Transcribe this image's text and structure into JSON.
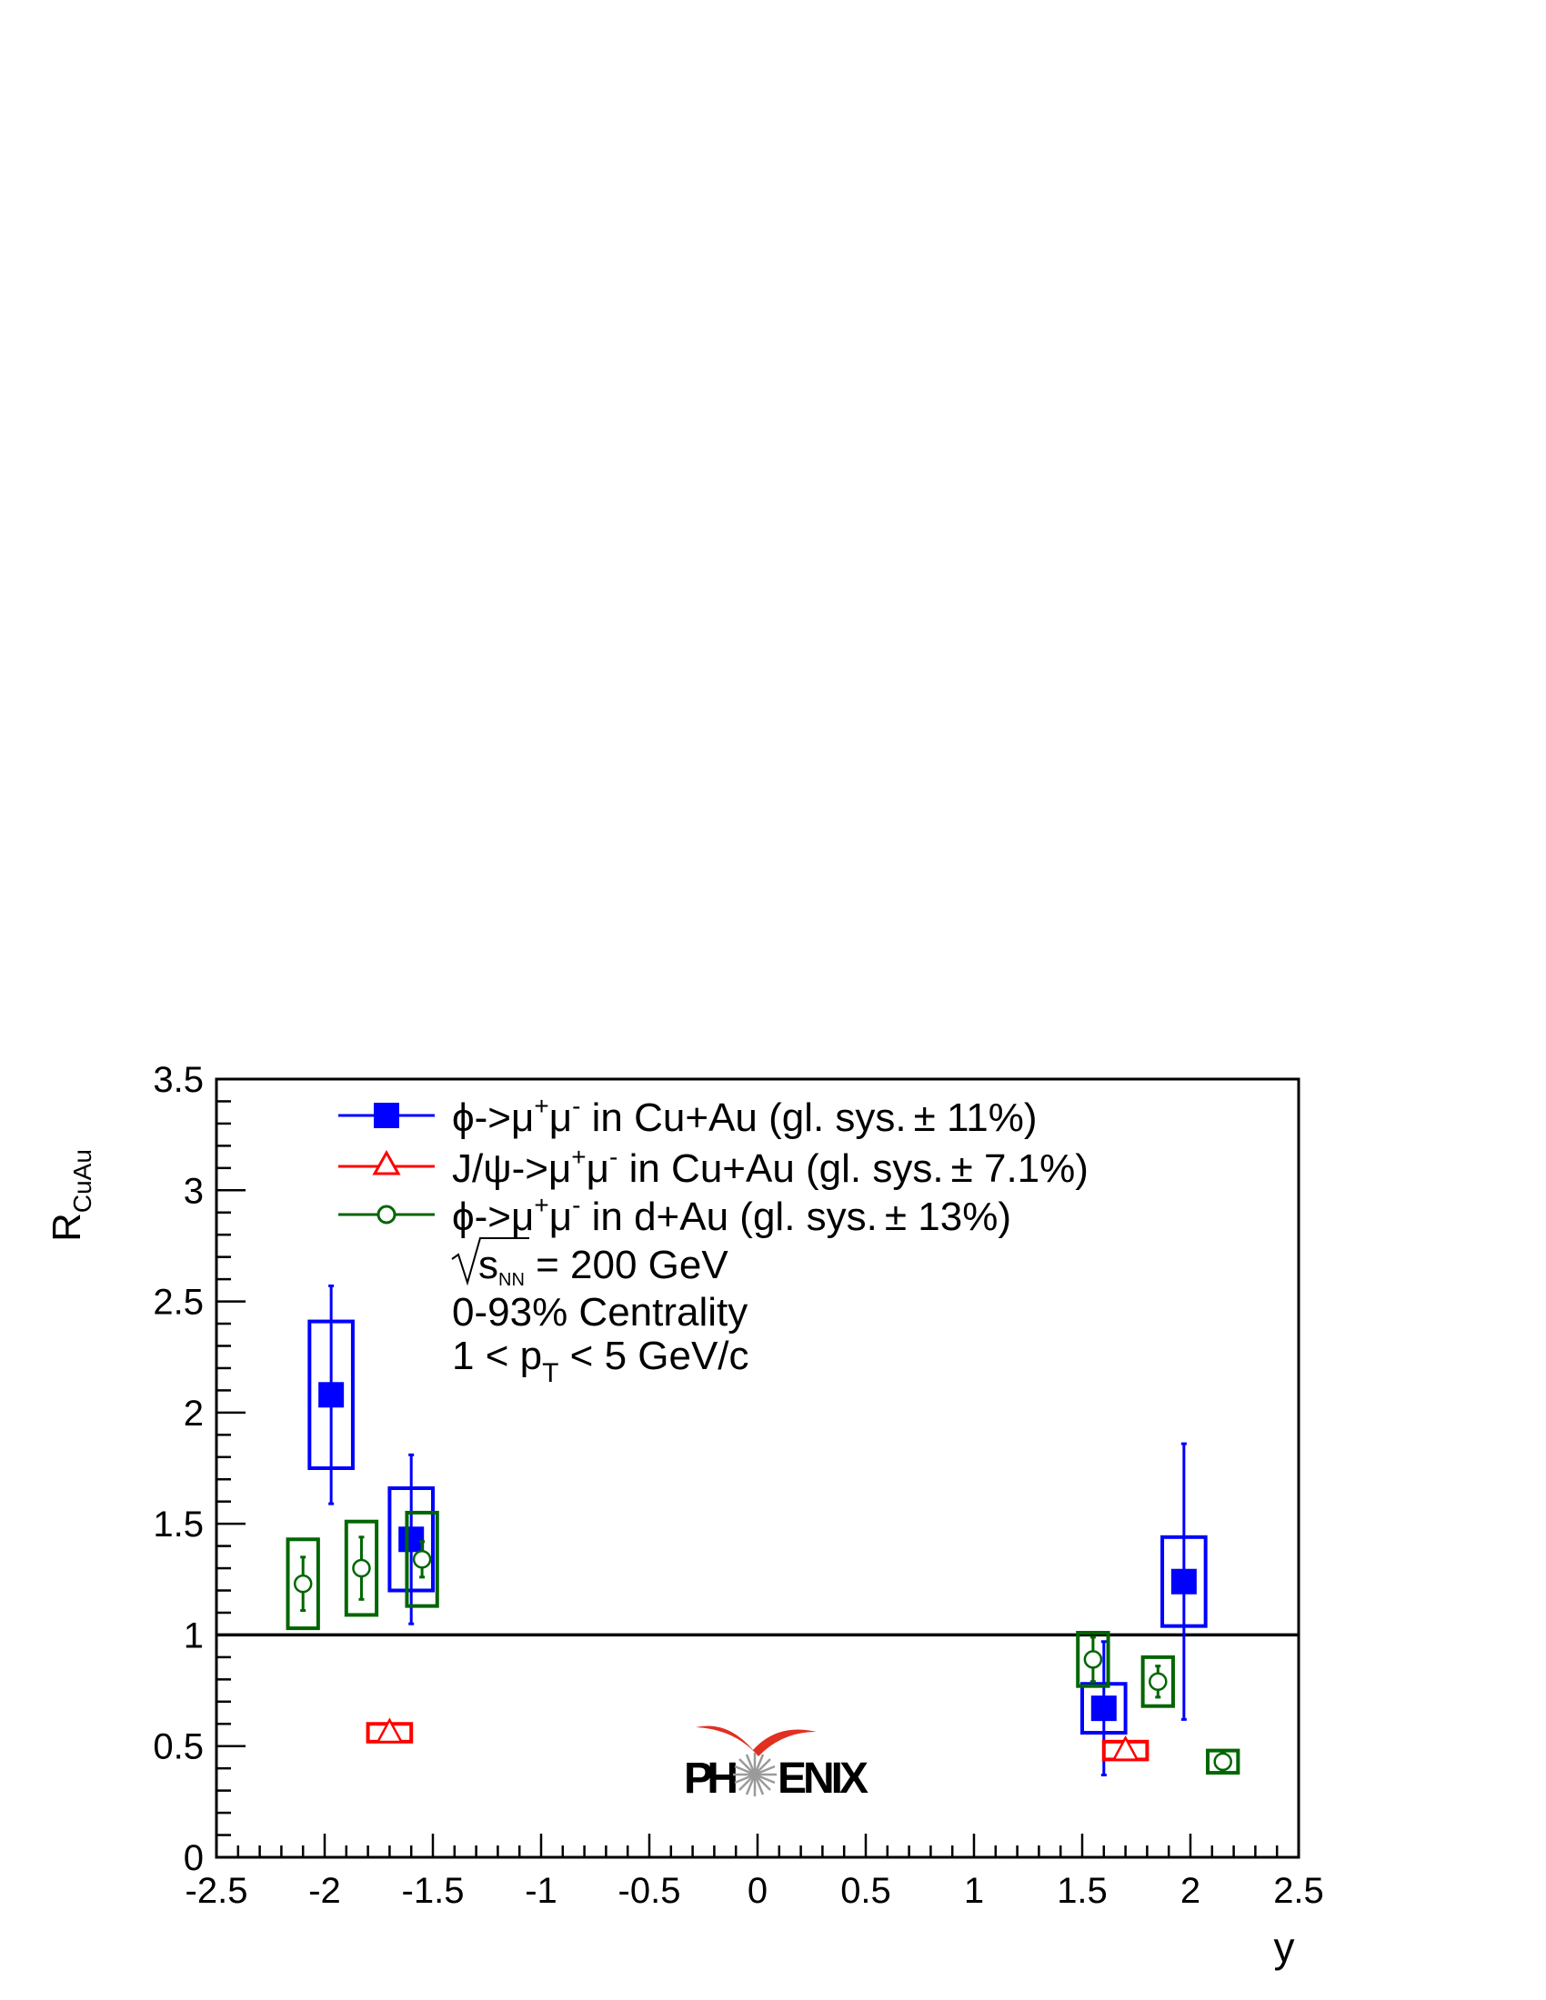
{
  "chart_data": {
    "type": "scatter",
    "title": "",
    "xlabel": "y",
    "ylabel": "R",
    "ylabel_sub": "CuAu",
    "xlim": [
      -2.5,
      2.5
    ],
    "ylim": [
      0,
      3.5
    ],
    "x_ticks": [
      -2.5,
      -2,
      -1.5,
      -1,
      -0.5,
      0,
      0.5,
      1,
      1.5,
      2,
      2.5
    ],
    "x_tick_labels": [
      "-2.5",
      "-2",
      "-1.5",
      "-1",
      "-0.5",
      "0",
      "0.5",
      "1",
      "1.5",
      "2",
      "2.5"
    ],
    "y_ticks": [
      0,
      0.5,
      1,
      1.5,
      2,
      2.5,
      3,
      3.5
    ],
    "y_tick_labels": [
      "0",
      "0.5",
      "1",
      "1.5",
      "2",
      "2.5",
      "3",
      "3.5"
    ],
    "reference_line": 1,
    "grid": false,
    "legend_position": "top-center",
    "series": [
      {
        "name": "ϕ->μ⁺μ⁻ in Cu+Au (gl. sys.± 11%)",
        "legend_parts": {
          "particle": "ϕ->μ",
          "mid": "μ",
          "tail": " in Cu+Au (gl. sys.",
          "pm": "±",
          "glsys": " 11%)"
        },
        "color": "#0000ff",
        "marker": "filled-square",
        "x": [
          -1.97,
          -1.6,
          1.6,
          1.97
        ],
        "y": [
          2.08,
          1.43,
          0.67,
          1.24
        ],
        "stat_err": [
          0.49,
          0.38,
          0.3,
          0.62
        ],
        "sys_err": [
          0.33,
          0.23,
          0.11,
          0.2
        ],
        "sys_halfwidth": 0.1
      },
      {
        "name": "J/ψ->μ⁺μ⁻ in Cu+Au (gl. sys.± 7.1%)",
        "legend_parts": {
          "particle": "J/ψ->μ",
          "mid": "μ",
          "tail": " in Cu+Au (gl. sys.",
          "pm": "±",
          "glsys": " 7.1%)"
        },
        "color": "#ff0000",
        "marker": "open-triangle",
        "x": [
          -1.7,
          1.7
        ],
        "y": [
          0.56,
          0.48
        ],
        "stat_err": [
          0.01,
          0.01
        ],
        "sys_err": [
          0.04,
          0.04
        ],
        "sys_halfwidth": 0.1
      },
      {
        "name": "ϕ->μ⁺μ⁻ in d+Au (gl. sys.± 13%)",
        "legend_parts": {
          "particle": "ϕ->μ",
          "mid": "μ",
          "tail": " in d+Au (gl. sys.",
          "pm": "±",
          "glsys": " 13%)"
        },
        "color": "#006600",
        "marker": "open-circle",
        "x": [
          -2.1,
          -1.83,
          -1.55,
          1.55,
          1.85,
          2.15
        ],
        "y": [
          1.23,
          1.3,
          1.34,
          0.89,
          0.79,
          0.43
        ],
        "stat_err": [
          0.12,
          0.14,
          0.08,
          0.1,
          0.07,
          0.04
        ],
        "sys_err": [
          0.2,
          0.21,
          0.21,
          0.12,
          0.11,
          0.05
        ],
        "sys_halfwidth": 0.07
      }
    ],
    "annotations": {
      "energy_sym": "s",
      "energy_sub": "NN",
      "energy_rest": " = 200 GeV",
      "centrality": "0-93% Centrality",
      "pt_pre": "1 < p",
      "pt_sub": "T",
      "pt_post": " < 5 GeV/c"
    },
    "logo": {
      "text_left": "PH",
      "text_right": "ENIX",
      "color": "#333333",
      "accent": "#e03020"
    }
  }
}
